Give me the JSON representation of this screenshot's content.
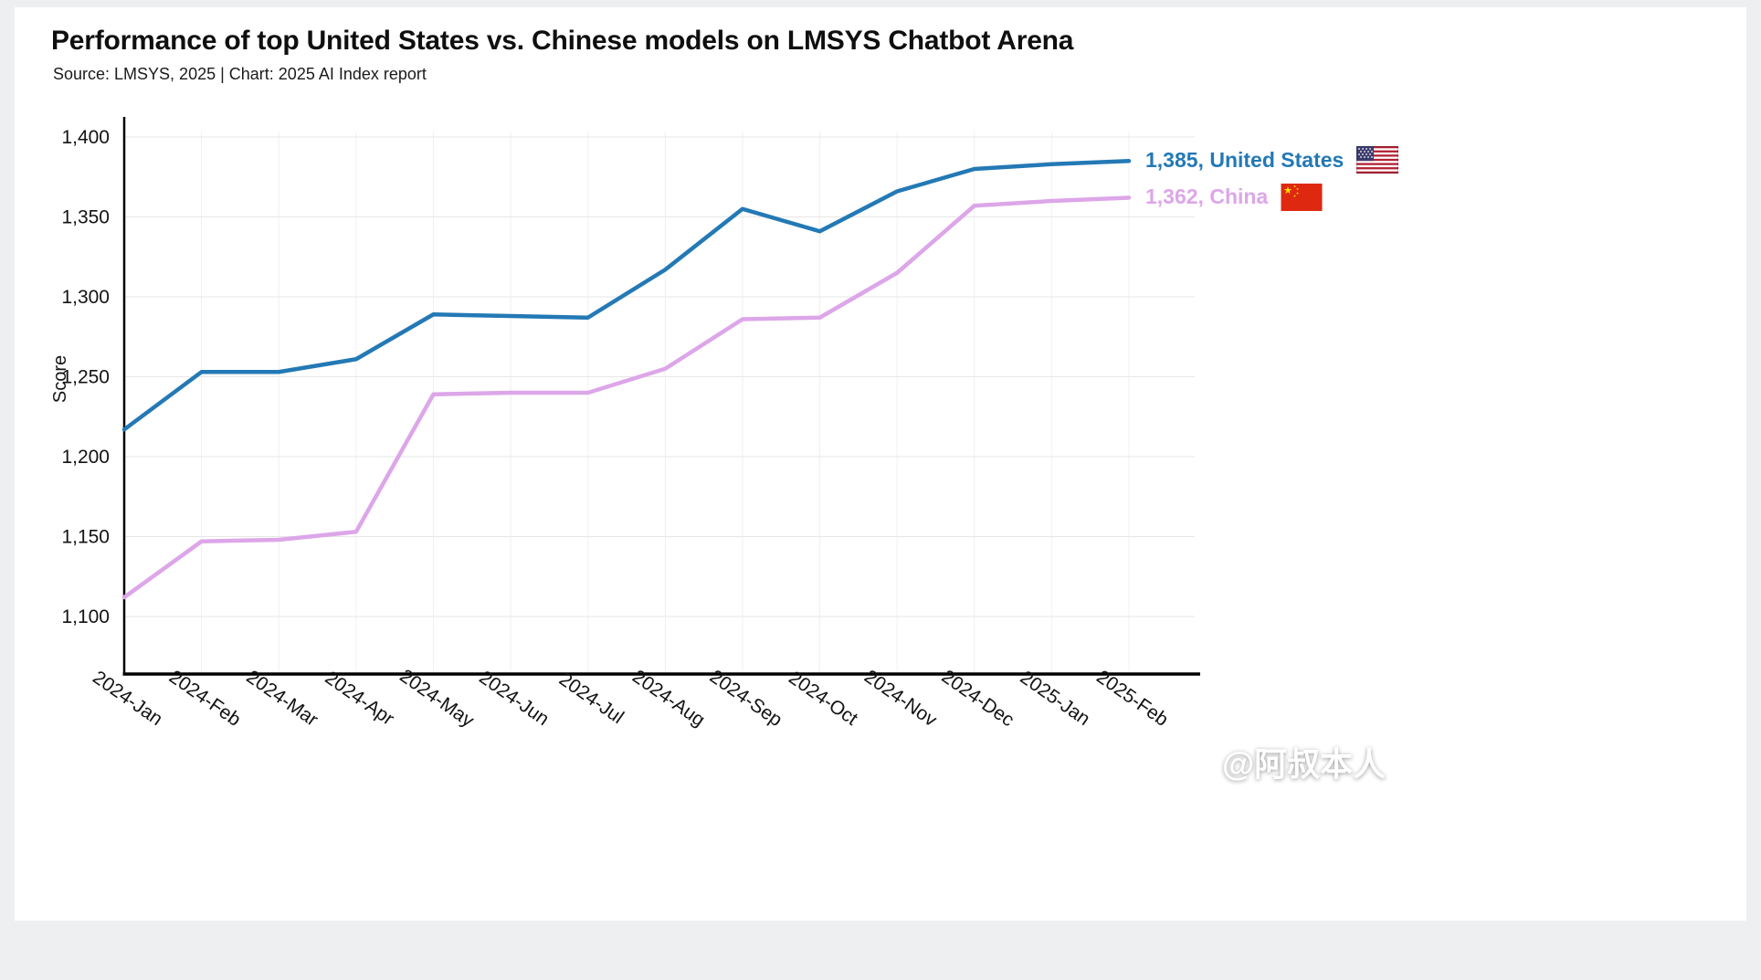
{
  "header": {
    "title": "Performance of top United States vs. Chinese models on LMSYS Chatbot Arena",
    "subtitle": "Source: LMSYS, 2025 | Chart: 2025 AI Index report"
  },
  "page": {
    "watermark": "@阿叔本人"
  },
  "chart_data": {
    "type": "line",
    "title": "Performance of top United States vs. Chinese models on LMSYS Chatbot Arena",
    "source": "Source: LMSYS, 2025 | Chart: 2025 AI Index report",
    "xlabel": "",
    "ylabel": "Score",
    "grid": true,
    "legend_position": "line-end-right",
    "ylim": [
      1065,
      1410
    ],
    "yticks": [
      {
        "value": 1100,
        "label": "1,100"
      },
      {
        "value": 1150,
        "label": "1,150"
      },
      {
        "value": 1200,
        "label": "1,200"
      },
      {
        "value": 1250,
        "label": "1,250"
      },
      {
        "value": 1300,
        "label": "1,300"
      },
      {
        "value": 1350,
        "label": "1,350"
      },
      {
        "value": 1400,
        "label": "1,400"
      }
    ],
    "categories": [
      "2024-Jan",
      "2024-Feb",
      "2024-Mar",
      "2024-Apr",
      "2024-May",
      "2024-Jun",
      "2024-Jul",
      "2024-Aug",
      "2024-Sep",
      "2024-Oct",
      "2024-Nov",
      "2024-Dec",
      "2025-Jan",
      "2025-Feb"
    ],
    "series": [
      {
        "name": "United States",
        "color": "#2379b5",
        "end_label": "1,385, United States",
        "end_value": 1385,
        "values": [
          1217,
          1253,
          1253,
          1261,
          1289,
          1288,
          1287,
          1317,
          1355,
          1341,
          1366,
          1380,
          1383,
          1385
        ]
      },
      {
        "name": "China",
        "color": "#dda6e9",
        "end_label": "1,362, China",
        "end_value": 1362,
        "values": [
          1112,
          1147,
          1148,
          1153,
          1239,
          1240,
          1240,
          1255,
          1286,
          1287,
          1315,
          1357,
          1360,
          1362
        ]
      }
    ]
  }
}
